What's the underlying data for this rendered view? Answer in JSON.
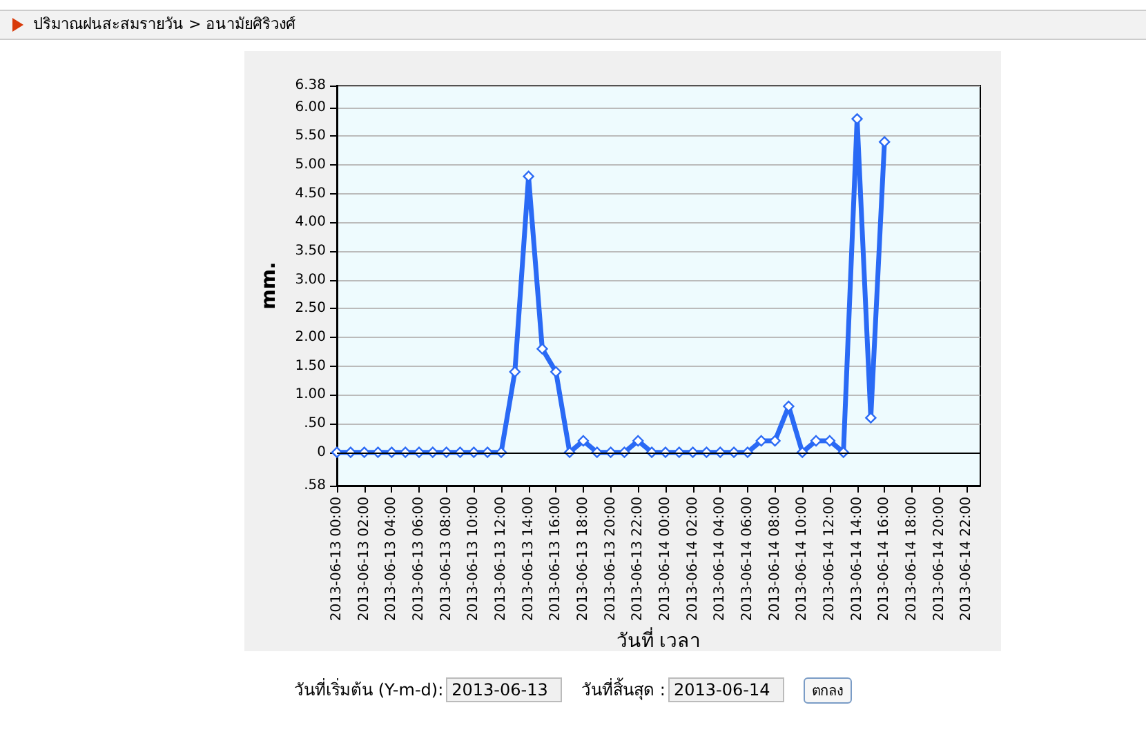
{
  "chart_data": {
    "type": "line",
    "xlabel": "วันที่ เวลา",
    "ylabel": "mm.",
    "categories": [
      "2013-06-13 00:00",
      null,
      "2013-06-13 02:00",
      null,
      "2013-06-13 04:00",
      null,
      "2013-06-13 06:00",
      null,
      "2013-06-13 08:00",
      null,
      "2013-06-13 10:00",
      null,
      "2013-06-13 12:00",
      null,
      "2013-06-13 14:00",
      null,
      "2013-06-13 16:00",
      null,
      "2013-06-13 18:00",
      null,
      "2013-06-13 20:00",
      null,
      "2013-06-13 22:00",
      null,
      "2013-06-14 00:00",
      null,
      "2013-06-14 02:00",
      null,
      "2013-06-14 04:00",
      null,
      "2013-06-14 06:00",
      null,
      "2013-06-14 08:00",
      null,
      "2013-06-14 10:00",
      null,
      "2013-06-14 12:00",
      null,
      "2013-06-14 14:00",
      null,
      "2013-06-14 16:00",
      null,
      "2013-06-14 18:00",
      null,
      "2013-06-14 20:00",
      null,
      "2013-06-14 22:00",
      null
    ],
    "series": [
      {
        "color": "#2a6af5",
        "values": [
          0,
          0,
          0,
          0,
          0,
          0,
          0,
          0,
          0,
          0,
          0,
          0,
          0,
          1.4,
          4.8,
          1.8,
          1.4,
          0,
          0.2,
          0,
          0,
          0,
          0.2,
          0,
          0,
          0,
          0,
          0,
          0,
          0,
          0,
          0.2,
          0.2,
          0.8,
          0,
          0.2,
          0.2,
          0,
          5.8,
          0.6,
          5.4,
          null,
          null,
          null,
          null,
          null,
          null,
          null
        ]
      }
    ],
    "ylim": [
      -0.58,
      6.38
    ],
    "yticks": [
      {
        "value": -0.58,
        "label": ".58"
      },
      0,
      {
        "value": 0.5,
        "label": ".50"
      },
      {
        "value": 1,
        "label": "1.00"
      },
      {
        "value": 1.5,
        "label": "1.50"
      },
      {
        "value": 2,
        "label": "2.00"
      },
      {
        "value": 2.5,
        "label": "2.50"
      },
      {
        "value": 3,
        "label": "3.00"
      },
      {
        "value": 3.5,
        "label": "3.50"
      },
      {
        "value": 4,
        "label": "4.00"
      },
      {
        "value": 4.5,
        "label": "4.50"
      },
      {
        "value": 5,
        "label": "5.00"
      },
      {
        "value": 5.5,
        "label": "5.50"
      },
      {
        "value": 6,
        "label": "6.00"
      },
      6.38
    ],
    "grid": "y",
    "marker": "diamond",
    "line_style": "solid",
    "ref_lines": [
      {
        "axis": "y",
        "value": 0,
        "color": "#000000"
      }
    ],
    "annotations": [
      "ปริมาณฝนสะสมรายวัน  >  อนามัยศิริวงศ์",
      "วันที่เริ่มต้น (Y-m-d):",
      "2013-06-13",
      "วันที่สิ้นสุด :",
      "2013-06-14",
      "ตกลง"
    ]
  }
}
